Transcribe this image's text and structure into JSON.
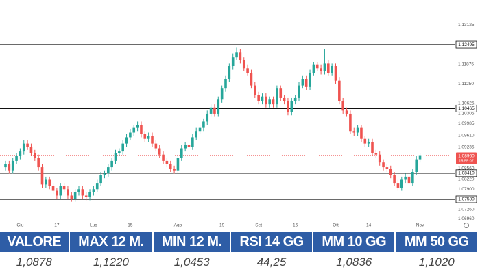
{
  "chart_data": {
    "type": "candlestick",
    "categories": [
      null,
      null,
      null,
      null,
      "Giu",
      null,
      null,
      null,
      null,
      null,
      null,
      null,
      null,
      null,
      "17",
      null,
      null,
      null,
      null,
      null,
      null,
      null,
      null,
      null,
      "Lug",
      null,
      null,
      null,
      null,
      null,
      null,
      null,
      null,
      null,
      "15",
      null,
      null,
      null,
      null,
      null,
      null,
      null,
      null,
      null,
      null,
      null,
      null,
      "Ago",
      null,
      null,
      null,
      null,
      null,
      null,
      null,
      null,
      null,
      null,
      null,
      "19",
      null,
      null,
      null,
      null,
      null,
      null,
      null,
      null,
      null,
      "Set",
      null,
      null,
      null,
      null,
      null,
      null,
      null,
      null,
      null,
      "16",
      null,
      null,
      null,
      null,
      null,
      null,
      null,
      null,
      null,
      null,
      "Ott",
      null,
      null,
      null,
      null,
      null,
      null,
      null,
      null,
      "14",
      null,
      null,
      null,
      null,
      null,
      null,
      null,
      null,
      null,
      null,
      null,
      null,
      null,
      "Nov"
    ],
    "open": [
      1.086,
      1.087,
      1.085,
      1.088,
      1.0895,
      1.091,
      1.0935,
      1.0925,
      1.0905,
      1.089,
      1.086,
      1.0805,
      1.082,
      1.08,
      1.0785,
      1.077,
      1.08,
      1.079,
      1.077,
      1.076,
      1.078,
      1.079,
      1.077,
      1.0765,
      1.078,
      1.079,
      1.081,
      1.0835,
      1.084,
      1.086,
      1.088,
      1.0905,
      1.091,
      1.0935,
      1.0955,
      1.097,
      1.0985,
      1.0995,
      1.0965,
      1.095,
      1.096,
      1.0935,
      1.092,
      1.09,
      1.088,
      1.087,
      1.0855,
      1.085,
      1.089,
      1.092,
      1.093,
      1.0925,
      1.0955,
      1.0975,
      1.0985,
      1.1005,
      1.103,
      1.105,
      1.103,
      1.1075,
      1.111,
      1.114,
      1.118,
      1.121,
      1.1225,
      1.12,
      1.1175,
      1.116,
      1.112,
      1.109,
      1.107,
      1.1085,
      1.106,
      1.1075,
      1.106,
      1.111,
      1.108,
      1.107,
      1.1035,
      1.107,
      1.108,
      1.112,
      1.114,
      1.1115,
      1.116,
      1.1185,
      1.1175,
      1.1165,
      1.119,
      1.116,
      1.118,
      1.1135,
      1.107,
      1.104,
      1.103,
      1.0975,
      1.097,
      1.0985,
      1.095,
      1.0935,
      1.094,
      1.0905,
      1.09,
      1.0875,
      1.086,
      1.0855,
      1.0835,
      1.081,
      1.0795,
      1.082,
      1.083,
      1.081,
      1.0845,
      1.0885
    ],
    "high": [
      1.088,
      1.088,
      1.089,
      1.0905,
      1.092,
      1.0945,
      1.0945,
      1.0935,
      1.0915,
      1.09,
      1.087,
      1.083,
      1.083,
      1.081,
      1.0795,
      1.081,
      1.081,
      1.08,
      1.078,
      1.079,
      1.08,
      1.08,
      1.078,
      1.079,
      1.08,
      1.082,
      1.0845,
      1.085,
      1.087,
      1.089,
      1.0915,
      1.092,
      1.0945,
      1.0965,
      1.098,
      1.0995,
      1.1005,
      1.1005,
      1.0975,
      1.097,
      1.097,
      1.0945,
      1.093,
      1.091,
      1.089,
      1.088,
      1.0865,
      1.09,
      1.093,
      1.094,
      1.094,
      1.0965,
      1.0985,
      1.0995,
      1.1015,
      1.104,
      1.106,
      1.106,
      1.1085,
      1.112,
      1.115,
      1.119,
      1.122,
      1.124,
      1.1235,
      1.121,
      1.1185,
      1.117,
      1.113,
      1.11,
      1.1095,
      1.1095,
      1.1085,
      1.1085,
      1.112,
      1.112,
      1.109,
      1.108,
      1.108,
      1.109,
      1.113,
      1.115,
      1.115,
      1.117,
      1.1195,
      1.1195,
      1.1185,
      1.1235,
      1.12,
      1.119,
      1.119,
      1.1145,
      1.108,
      1.105,
      1.104,
      1.0985,
      1.0995,
      1.0995,
      1.096,
      1.095,
      1.095,
      1.0915,
      1.091,
      1.0885,
      1.087,
      1.0865,
      1.0845,
      1.082,
      1.083,
      1.084,
      1.084,
      1.0855,
      1.0895,
      1.0906
    ],
    "low": [
      1.085,
      1.084,
      1.084,
      1.087,
      1.0885,
      1.09,
      1.0915,
      1.0895,
      1.088,
      1.085,
      1.0795,
      1.0795,
      1.079,
      1.0775,
      1.076,
      1.076,
      1.078,
      1.076,
      1.075,
      1.075,
      1.077,
      1.076,
      1.0755,
      1.0755,
      1.077,
      1.078,
      1.08,
      1.0825,
      1.083,
      1.085,
      1.087,
      1.0895,
      1.09,
      1.0925,
      1.0945,
      1.096,
      1.0975,
      1.0955,
      1.094,
      1.094,
      1.0925,
      1.091,
      1.089,
      1.087,
      1.086,
      1.0845,
      1.084,
      1.084,
      1.088,
      1.091,
      1.0915,
      1.0915,
      1.0945,
      1.0965,
      1.0975,
      1.0995,
      1.102,
      1.102,
      1.102,
      1.1065,
      1.11,
      1.113,
      1.117,
      1.12,
      1.119,
      1.1165,
      1.115,
      1.111,
      1.108,
      1.106,
      1.106,
      1.105,
      1.105,
      1.105,
      1.105,
      1.107,
      1.106,
      1.1025,
      1.1025,
      1.106,
      1.107,
      1.111,
      1.1105,
      1.1105,
      1.115,
      1.1165,
      1.1155,
      1.1155,
      1.115,
      1.115,
      1.1125,
      1.106,
      1.103,
      1.102,
      1.0965,
      1.096,
      1.096,
      1.094,
      1.0925,
      1.0925,
      1.0895,
      1.089,
      1.0865,
      1.085,
      1.0845,
      1.0825,
      1.08,
      1.0785,
      1.0785,
      1.081,
      1.08,
      1.08,
      1.0835,
      1.0875
    ],
    "close": [
      1.087,
      1.085,
      1.088,
      1.0895,
      1.091,
      1.0935,
      1.0925,
      1.0905,
      1.089,
      1.086,
      1.0805,
      1.082,
      1.08,
      1.0785,
      1.077,
      1.08,
      1.079,
      1.077,
      1.076,
      1.078,
      1.079,
      1.077,
      1.0765,
      1.078,
      1.079,
      1.081,
      1.0835,
      1.084,
      1.086,
      1.088,
      1.0905,
      1.091,
      1.0935,
      1.0955,
      1.097,
      1.0985,
      1.0995,
      1.0965,
      1.095,
      1.096,
      1.0935,
      1.092,
      1.09,
      1.088,
      1.087,
      1.0855,
      1.085,
      1.089,
      1.092,
      1.093,
      1.0925,
      1.0955,
      1.0975,
      1.0985,
      1.1005,
      1.103,
      1.105,
      1.103,
      1.1075,
      1.111,
      1.114,
      1.118,
      1.121,
      1.1225,
      1.12,
      1.1175,
      1.116,
      1.112,
      1.109,
      1.107,
      1.1085,
      1.106,
      1.1075,
      1.106,
      1.111,
      1.108,
      1.107,
      1.1035,
      1.107,
      1.108,
      1.112,
      1.114,
      1.1115,
      1.116,
      1.1185,
      1.1175,
      1.1165,
      1.119,
      1.116,
      1.118,
      1.1135,
      1.107,
      1.104,
      1.103,
      1.0975,
      1.097,
      1.0985,
      1.095,
      1.0935,
      1.094,
      1.0905,
      1.09,
      1.0875,
      1.086,
      1.0855,
      1.0835,
      1.081,
      1.0795,
      1.082,
      1.083,
      1.081,
      1.0845,
      1.0885,
      1.0896
    ],
    "up_color": "#26a69a",
    "down_color": "#ef5350",
    "ylim": [
      1.0684,
      1.1391
    ],
    "yticks": [
      {
        "value": 1.13125,
        "label": "1.13125"
      },
      {
        "value": 1.11875,
        "label": "1.11875"
      },
      {
        "value": 1.1125,
        "label": "1.11250"
      },
      {
        "value": 1.10625,
        "label": "1.10625"
      },
      {
        "value": 1.10305,
        "label": "1.10305"
      },
      {
        "value": 1.09985,
        "label": "1.09985"
      },
      {
        "value": 1.0961,
        "label": "1.09610"
      },
      {
        "value": 1.09235,
        "label": "1.09235"
      },
      {
        "value": 1.0856,
        "label": "1.08560"
      },
      {
        "value": 1.0822,
        "label": "1.08220"
      },
      {
        "value": 1.079,
        "label": "1.07900"
      },
      {
        "value": 1.0726,
        "label": "1.07260"
      },
      {
        "value": 1.0696,
        "label": "1.06960"
      }
    ],
    "levels": [
      {
        "value": 1.12495,
        "label": "1.12495"
      },
      {
        "value": 1.10465,
        "label": "1.10465"
      },
      {
        "value": 1.0841,
        "label": "1.08410"
      },
      {
        "value": 1.0758,
        "label": "1.07580"
      }
    ],
    "last_price": {
      "value": 1.0896,
      "label": "1.08960"
    },
    "countdown": "15:55:07"
  },
  "table": {
    "headers": [
      "VALORE",
      "MAX 12 M.",
      "MIN 12 M.",
      "RSI 14 GG",
      "MM 10 GG",
      "MM 50 GG"
    ],
    "rows": [
      [
        "1,0878",
        "1,1220",
        "1,0453",
        "44,25",
        "1,0836",
        "1,1020"
      ]
    ]
  }
}
